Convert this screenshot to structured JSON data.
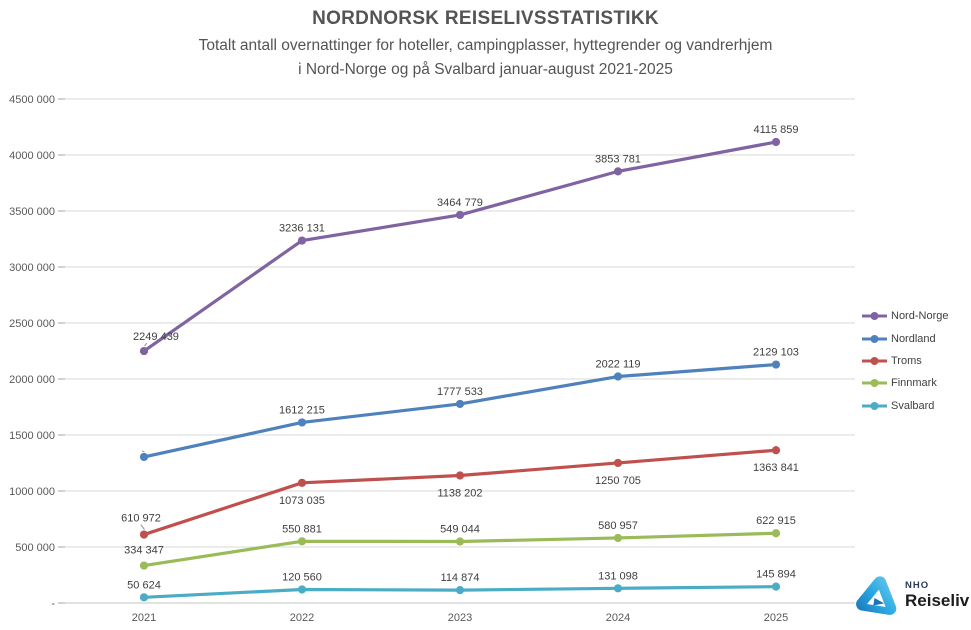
{
  "header": {
    "title": "NORDNORSK REISELIVSSTATISTIKK",
    "subtitle_line1": "Totalt antall overnattinger for hoteller, campingplasser, hyttegrender og vandrerhjem",
    "subtitle_line2": "i Nord-Norge og på Svalbard januar-august 2021-2025"
  },
  "logo": {
    "brand_top": "NHO",
    "brand_name": "Reiseliv",
    "icon": "nho-triangle-logo",
    "icon_color_light": "#6fc9ee",
    "icon_color_dark": "#1b75bb"
  },
  "chart_data": {
    "type": "line",
    "title": "NORDNORSK REISELIVSSTATISTIKK",
    "subtitle": "Totalt antall overnattinger for hoteller, campingplasser, hyttegrender og vandrerhjem i Nord-Norge og på Svalbard januar-august 2021-2025",
    "x": [
      "2021",
      "2022",
      "2023",
      "2024",
      "2025"
    ],
    "xlabel": "",
    "ylabel": "",
    "ylim": [
      0,
      4500000
    ],
    "grid": true,
    "legend_position": "right",
    "y_ticks": {
      "values": [
        0,
        500000,
        1000000,
        1500000,
        2000000,
        2500000,
        3000000,
        3500000,
        4000000,
        4500000
      ],
      "labels": [
        "-",
        "500 000",
        "1000 000",
        "1500 000",
        "2000 000",
        "2500 000",
        "3000 000",
        "3500 000",
        "4000 000",
        "4500 000"
      ]
    },
    "series": [
      {
        "name": "Nord-Norge",
        "color": "#8064A2",
        "values": [
          2249439,
          3236131,
          3464779,
          3853781,
          4115859
        ],
        "labels": [
          "2249 439",
          "3236 131",
          "3464 779",
          "3853 781",
          "4115 859"
        ],
        "label_side": "above",
        "overrides": {
          "0": {
            "dx": 12,
            "dy": -2,
            "leader": true
          }
        }
      },
      {
        "name": "Nordland",
        "color": "#4F81BD",
        "values": [
          1304120,
          1612215,
          1777533,
          2022119,
          2129103
        ],
        "labels": [
          "",
          "1612 215",
          "1777 533",
          "2022 119",
          "2129 103"
        ],
        "label_side": "above",
        "overrides": {
          "0": {
            "leader": true
          }
        }
      },
      {
        "name": "Troms",
        "color": "#C0504D",
        "values": [
          610972,
          1073035,
          1138202,
          1250705,
          1363841
        ],
        "labels": [
          "610 972",
          "1073 035",
          "1138 202",
          "1250 705",
          "1363 841"
        ],
        "label_side": "below",
        "overrides": {
          "0": {
            "dx": -3,
            "dy": -4,
            "side": "above",
            "leader": true
          }
        }
      },
      {
        "name": "Finnmark",
        "color": "#9BBB59",
        "values": [
          334347,
          550881,
          549044,
          580957,
          622915
        ],
        "labels": [
          "334 347",
          "550 881",
          "549 044",
          "580 957",
          "622 915"
        ],
        "label_side": "above",
        "overrides": {
          "0": {
            "dy": -3
          }
        }
      },
      {
        "name": "Svalbard",
        "color": "#4BACC6",
        "values": [
          50624,
          120560,
          114874,
          131098,
          145894
        ],
        "labels": [
          "50 624",
          "120 560",
          "114 874",
          "131 098",
          "145 894"
        ],
        "label_side": "above",
        "overrides": {}
      }
    ]
  }
}
